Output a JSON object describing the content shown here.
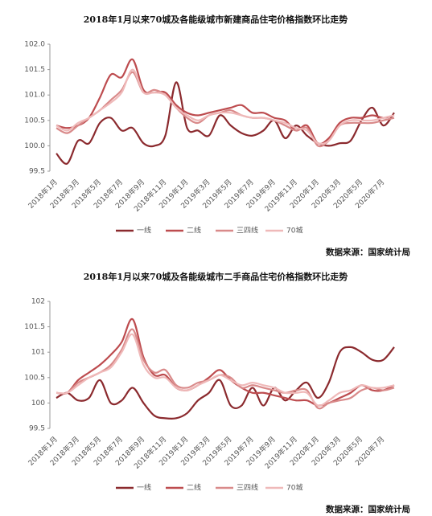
{
  "chart_data": [
    {
      "type": "line",
      "title": "2018年1月以来70城及各能级城市新建商品住宅价格指数环比走势",
      "source": "数据来源：国家统计局",
      "categories": [
        "2018年1月",
        null,
        "2018年3月",
        null,
        "2018年5月",
        null,
        "2018年7月",
        null,
        "2018年9月",
        null,
        "2018年11月",
        null,
        "2019年1月",
        null,
        "2019年3月",
        null,
        "2019年5月",
        null,
        "2019年7月",
        null,
        "2019年9月",
        null,
        "2019年11月",
        null,
        "2020年1月",
        null,
        "2020年3月",
        null,
        "2020年5月",
        null,
        "2020年7月",
        null
      ],
      "ylim": [
        99.5,
        102.0
      ],
      "yticks": [
        99.5,
        {
          "value": 100,
          "label": "100.0"
        },
        100.5,
        {
          "value": 101,
          "label": "101.0"
        },
        101.5,
        {
          "value": 102,
          "label": "102.0"
        }
      ],
      "grid": false,
      "series": [
        {
          "name": "一线",
          "color": "#8b2a2e",
          "values": [
            99.85,
            99.65,
            100.1,
            100.05,
            100.45,
            100.55,
            100.3,
            100.35,
            100.05,
            100.0,
            100.2,
            101.25,
            100.35,
            100.3,
            100.2,
            100.6,
            100.4,
            100.25,
            100.2,
            100.3,
            100.5,
            100.15,
            100.4,
            100.2,
            100.05,
            100.0,
            100.05,
            100.1,
            100.5,
            100.75,
            100.4,
            100.65
          ]
        },
        {
          "name": "二线",
          "color": "#bd4c4f",
          "values": [
            100.4,
            100.35,
            100.4,
            100.55,
            100.95,
            101.4,
            101.35,
            101.7,
            101.1,
            101.05,
            101.05,
            100.8,
            100.65,
            100.6,
            100.65,
            100.7,
            100.75,
            100.8,
            100.65,
            100.65,
            100.55,
            100.5,
            100.3,
            100.4,
            100.05,
            100.15,
            100.45,
            100.55,
            100.55,
            100.6,
            100.55,
            100.6
          ]
        },
        {
          "name": "三四线",
          "color": "#d98a8a",
          "values": [
            100.35,
            100.25,
            100.4,
            100.55,
            100.7,
            100.9,
            101.1,
            101.45,
            101.05,
            101.1,
            101.0,
            100.75,
            100.55,
            100.45,
            100.6,
            100.65,
            100.7,
            100.6,
            100.55,
            100.55,
            100.5,
            100.4,
            100.3,
            100.35,
            100.0,
            100.1,
            100.4,
            100.45,
            100.45,
            100.45,
            100.5,
            100.55
          ]
        },
        {
          "name": "70城",
          "color": "#efb9b9",
          "values": [
            100.4,
            100.3,
            100.45,
            100.55,
            100.7,
            100.85,
            101.05,
            101.5,
            101.05,
            101.05,
            101.0,
            100.75,
            100.6,
            100.5,
            100.6,
            100.65,
            100.65,
            100.6,
            100.55,
            100.55,
            100.5,
            100.45,
            100.35,
            100.3,
            100.05,
            100.1,
            100.4,
            100.5,
            100.5,
            100.5,
            100.55,
            100.6
          ]
        }
      ]
    },
    {
      "type": "line",
      "title": "2018年1月以来70城及各能级城市二手商品住宅价格指数环比走势",
      "source": "数据来源：国家统计局",
      "categories": [
        "2018年1月",
        null,
        "2018年3月",
        null,
        "2018年5月",
        null,
        "2018年7月",
        null,
        "2018年9月",
        null,
        "2018年11月",
        null,
        "2019年1月",
        null,
        "2019年3月",
        null,
        "2019年5月",
        null,
        "2019年7月",
        null,
        "2019年9月",
        null,
        "2019年11月",
        null,
        "2020年1月",
        null,
        "2020年3月",
        null,
        "2020年5月",
        null,
        "2020年7月",
        null
      ],
      "ylim": [
        99.5,
        102
      ],
      "yticks": [
        99.5,
        100,
        100.5,
        101,
        101.5,
        102
      ],
      "grid": false,
      "series": [
        {
          "name": "一线",
          "color": "#8b2a2e",
          "values": [
            100.1,
            100.2,
            100.05,
            100.1,
            100.45,
            100.0,
            100.05,
            100.3,
            100.0,
            99.75,
            99.7,
            99.7,
            99.8,
            100.05,
            100.2,
            100.45,
            99.95,
            99.95,
            100.3,
            99.95,
            100.3,
            100.05,
            100.25,
            100.4,
            100.1,
            100.4,
            101.0,
            101.1,
            101.0,
            100.85,
            100.85,
            101.1
          ]
        },
        {
          "name": "二线",
          "color": "#bd4c4f",
          "values": [
            100.2,
            100.2,
            100.45,
            100.6,
            100.75,
            100.95,
            101.2,
            101.65,
            100.9,
            100.55,
            100.55,
            100.3,
            100.25,
            100.35,
            100.5,
            100.65,
            100.45,
            100.3,
            100.2,
            100.2,
            100.15,
            100.1,
            100.05,
            100.05,
            99.95,
            100.0,
            100.1,
            100.2,
            100.35,
            100.25,
            100.25,
            100.35
          ]
        },
        {
          "name": "三四线",
          "color": "#d98a8a",
          "values": [
            100.2,
            100.2,
            100.4,
            100.5,
            100.6,
            100.75,
            101.05,
            101.45,
            100.85,
            100.6,
            100.65,
            100.35,
            100.3,
            100.4,
            100.45,
            100.55,
            100.5,
            100.3,
            100.35,
            100.3,
            100.25,
            100.2,
            100.25,
            100.25,
            99.9,
            100.0,
            100.05,
            100.1,
            100.25,
            100.3,
            100.25,
            100.3
          ]
        },
        {
          "name": "70城",
          "color": "#efb9b9",
          "values": [
            100.2,
            100.2,
            100.35,
            100.5,
            100.6,
            100.7,
            101.0,
            101.35,
            100.75,
            100.5,
            100.5,
            100.3,
            100.25,
            100.35,
            100.45,
            100.55,
            100.45,
            100.35,
            100.4,
            100.35,
            100.3,
            100.2,
            100.2,
            100.2,
            99.95,
            100.05,
            100.2,
            100.25,
            100.35,
            100.3,
            100.3,
            100.35
          ]
        }
      ]
    }
  ]
}
